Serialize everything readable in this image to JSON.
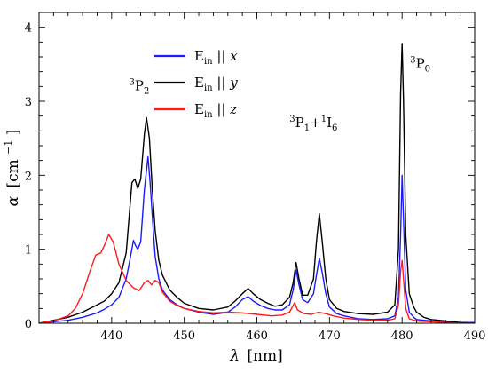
{
  "chart_data": {
    "type": "line",
    "xlabel": {
      "symbol": "λ",
      "unit": "[nm]"
    },
    "ylabel": {
      "symbol": "α",
      "unit_pre": "[cm",
      "unit_sup": "−1",
      "unit_post": "]"
    },
    "xlim": [
      430,
      490
    ],
    "ylim": [
      0,
      4.2
    ],
    "xticks": [
      440,
      450,
      460,
      470,
      480,
      490
    ],
    "yticks": [
      0,
      1,
      2,
      3,
      4
    ],
    "legend_placement": "top-center",
    "grid": false,
    "annotations": [
      {
        "id": "p2",
        "sup1": "3",
        "base1": "P",
        "sub1": "2",
        "x": 443.8,
        "y": 3.15
      },
      {
        "id": "p1i6",
        "sup1": "3",
        "base1": "P",
        "sub1": "1",
        "joiner": "+",
        "sup2": "1",
        "base2": "I",
        "sub2": "6",
        "x": 467.8,
        "y": 2.65
      },
      {
        "id": "p0",
        "sup1": "3",
        "base1": "P",
        "sub1": "0",
        "x": 482.5,
        "y": 3.45
      }
    ],
    "series": [
      {
        "name": {
          "base": "E",
          "sub": "in",
          "rel": " || ",
          "var": "x"
        },
        "color": "#1a1aff",
        "points": [
          [
            430,
            0.0
          ],
          [
            432,
            0.02
          ],
          [
            434,
            0.04
          ],
          [
            436,
            0.08
          ],
          [
            438,
            0.14
          ],
          [
            439,
            0.19
          ],
          [
            440,
            0.25
          ],
          [
            441,
            0.35
          ],
          [
            442,
            0.6
          ],
          [
            442.5,
            0.85
          ],
          [
            443,
            1.12
          ],
          [
            443.3,
            1.05
          ],
          [
            443.6,
            1.0
          ],
          [
            444,
            1.1
          ],
          [
            444.5,
            1.8
          ],
          [
            445,
            2.25
          ],
          [
            445.3,
            1.9
          ],
          [
            445.7,
            1.3
          ],
          [
            446,
            0.9
          ],
          [
            446.5,
            0.6
          ],
          [
            447,
            0.45
          ],
          [
            448,
            0.32
          ],
          [
            449,
            0.25
          ],
          [
            450,
            0.2
          ],
          [
            452,
            0.15
          ],
          [
            454,
            0.12
          ],
          [
            456,
            0.15
          ],
          [
            457,
            0.22
          ],
          [
            458,
            0.32
          ],
          [
            458.8,
            0.36
          ],
          [
            459.5,
            0.3
          ],
          [
            460.5,
            0.24
          ],
          [
            461.5,
            0.2
          ],
          [
            462.5,
            0.18
          ],
          [
            463.5,
            0.18
          ],
          [
            464.5,
            0.25
          ],
          [
            465,
            0.45
          ],
          [
            465.4,
            0.72
          ],
          [
            465.8,
            0.52
          ],
          [
            466.3,
            0.32
          ],
          [
            467,
            0.28
          ],
          [
            467.8,
            0.4
          ],
          [
            468.2,
            0.65
          ],
          [
            468.6,
            0.88
          ],
          [
            469,
            0.68
          ],
          [
            469.5,
            0.4
          ],
          [
            470,
            0.22
          ],
          [
            471,
            0.13
          ],
          [
            472,
            0.1
          ],
          [
            474,
            0.06
          ],
          [
            476,
            0.05
          ],
          [
            478,
            0.06
          ],
          [
            479,
            0.1
          ],
          [
            479.5,
            0.35
          ],
          [
            479.8,
            1.2
          ],
          [
            480,
            2.0
          ],
          [
            480.2,
            1.4
          ],
          [
            480.5,
            0.45
          ],
          [
            481,
            0.15
          ],
          [
            481.6,
            0.08
          ],
          [
            482,
            0.05
          ],
          [
            484,
            0.03
          ],
          [
            486,
            0.02
          ],
          [
            488,
            0.01
          ],
          [
            490,
            0.01
          ]
        ]
      },
      {
        "name": {
          "base": "E",
          "sub": "in",
          "rel": " || ",
          "var": "y"
        },
        "color": "#000000",
        "points": [
          [
            430,
            0.0
          ],
          [
            432,
            0.04
          ],
          [
            434,
            0.08
          ],
          [
            436,
            0.15
          ],
          [
            438,
            0.25
          ],
          [
            439,
            0.3
          ],
          [
            440,
            0.4
          ],
          [
            441,
            0.55
          ],
          [
            442,
            0.95
          ],
          [
            442.5,
            1.55
          ],
          [
            442.8,
            1.9
          ],
          [
            443.2,
            1.95
          ],
          [
            443.6,
            1.82
          ],
          [
            444,
            1.95
          ],
          [
            444.5,
            2.55
          ],
          [
            444.8,
            2.78
          ],
          [
            445.2,
            2.5
          ],
          [
            445.6,
            1.8
          ],
          [
            446,
            1.25
          ],
          [
            446.5,
            0.85
          ],
          [
            447,
            0.65
          ],
          [
            448,
            0.45
          ],
          [
            449,
            0.35
          ],
          [
            450,
            0.27
          ],
          [
            452,
            0.2
          ],
          [
            454,
            0.18
          ],
          [
            456,
            0.22
          ],
          [
            457,
            0.3
          ],
          [
            458,
            0.4
          ],
          [
            458.8,
            0.47
          ],
          [
            459.5,
            0.4
          ],
          [
            460.5,
            0.32
          ],
          [
            461.5,
            0.27
          ],
          [
            462.5,
            0.23
          ],
          [
            463.5,
            0.25
          ],
          [
            464.5,
            0.35
          ],
          [
            465,
            0.55
          ],
          [
            465.4,
            0.82
          ],
          [
            465.8,
            0.6
          ],
          [
            466.3,
            0.38
          ],
          [
            467,
            0.38
          ],
          [
            467.8,
            0.6
          ],
          [
            468.2,
            1.1
          ],
          [
            468.6,
            1.48
          ],
          [
            469,
            1.1
          ],
          [
            469.5,
            0.6
          ],
          [
            470,
            0.32
          ],
          [
            471,
            0.2
          ],
          [
            472,
            0.16
          ],
          [
            474,
            0.13
          ],
          [
            476,
            0.12
          ],
          [
            478,
            0.15
          ],
          [
            479,
            0.25
          ],
          [
            479.5,
            1.0
          ],
          [
            479.8,
            3.1
          ],
          [
            480,
            3.78
          ],
          [
            480.2,
            3.0
          ],
          [
            480.5,
            1.2
          ],
          [
            481,
            0.4
          ],
          [
            481.6,
            0.22
          ],
          [
            482,
            0.15
          ],
          [
            483,
            0.08
          ],
          [
            484,
            0.05
          ],
          [
            486,
            0.03
          ],
          [
            488,
            0.01
          ],
          [
            490,
            0.0
          ]
        ]
      },
      {
        "name": {
          "base": "E",
          "sub": "in",
          "rel": " || ",
          "var": "z"
        },
        "color": "#ff1a1a",
        "points": [
          [
            430,
            0.0
          ],
          [
            432,
            0.03
          ],
          [
            434,
            0.1
          ],
          [
            435,
            0.2
          ],
          [
            436,
            0.4
          ],
          [
            437,
            0.7
          ],
          [
            437.8,
            0.92
          ],
          [
            438.5,
            0.95
          ],
          [
            439,
            1.05
          ],
          [
            439.6,
            1.2
          ],
          [
            440.2,
            1.1
          ],
          [
            441,
            0.8
          ],
          [
            442,
            0.58
          ],
          [
            443,
            0.48
          ],
          [
            443.8,
            0.44
          ],
          [
            444.5,
            0.55
          ],
          [
            445,
            0.58
          ],
          [
            445.5,
            0.52
          ],
          [
            446,
            0.58
          ],
          [
            446.5,
            0.55
          ],
          [
            447,
            0.42
          ],
          [
            448,
            0.3
          ],
          [
            449,
            0.24
          ],
          [
            450,
            0.2
          ],
          [
            452,
            0.16
          ],
          [
            454,
            0.14
          ],
          [
            456,
            0.15
          ],
          [
            458,
            0.14
          ],
          [
            460,
            0.12
          ],
          [
            462,
            0.1
          ],
          [
            463.5,
            0.11
          ],
          [
            464.5,
            0.15
          ],
          [
            465.2,
            0.28
          ],
          [
            465.6,
            0.18
          ],
          [
            466.5,
            0.13
          ],
          [
            467.5,
            0.12
          ],
          [
            468.5,
            0.15
          ],
          [
            469.5,
            0.13
          ],
          [
            470.5,
            0.1
          ],
          [
            472,
            0.07
          ],
          [
            474,
            0.05
          ],
          [
            476,
            0.04
          ],
          [
            478,
            0.04
          ],
          [
            479,
            0.06
          ],
          [
            479.5,
            0.25
          ],
          [
            479.8,
            0.7
          ],
          [
            480,
            0.85
          ],
          [
            480.2,
            0.6
          ],
          [
            480.5,
            0.2
          ],
          [
            481,
            0.06
          ],
          [
            482,
            0.03
          ],
          [
            484,
            0.02
          ],
          [
            486,
            0.01
          ],
          [
            488,
            0.0
          ],
          [
            490,
            0.0
          ]
        ]
      }
    ]
  }
}
